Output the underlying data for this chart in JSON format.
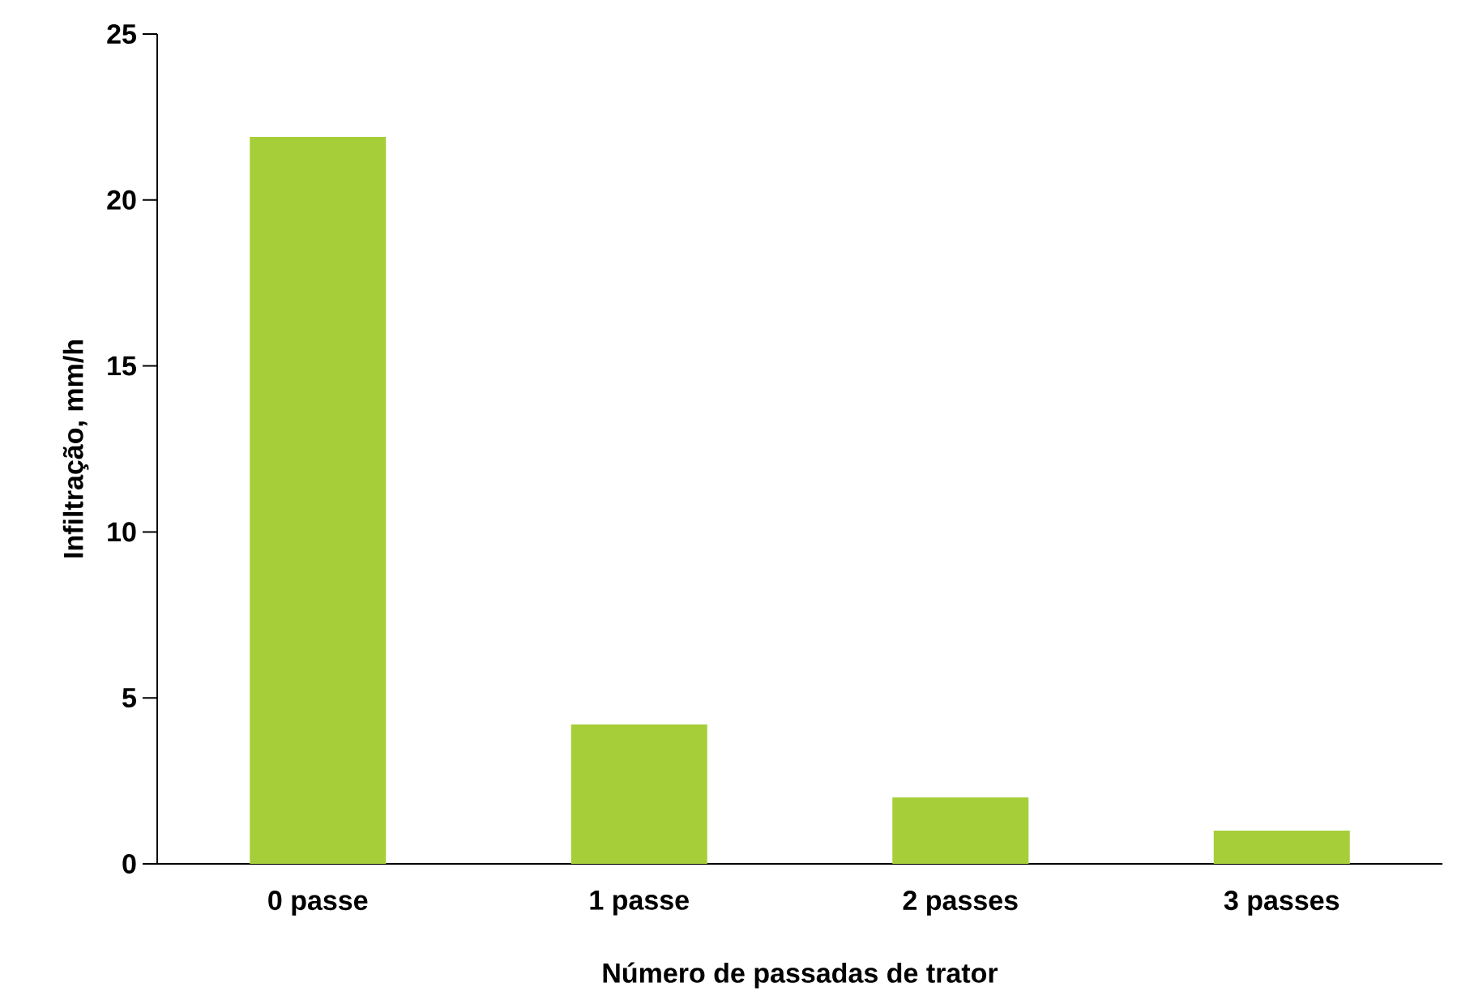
{
  "chart_data": {
    "type": "bar",
    "xlabel": "Número de passadas de trator",
    "ylabel": "Infiltração, mm/h",
    "categories": [
      "0 passe",
      "1 passe",
      "2 passes",
      "3 passes"
    ],
    "values": [
      21.9,
      4.2,
      2.0,
      1.0
    ],
    "color": "#a6ce39",
    "ylim": [
      0,
      25
    ],
    "yticks": [
      0,
      5,
      10,
      15,
      20,
      25
    ]
  }
}
